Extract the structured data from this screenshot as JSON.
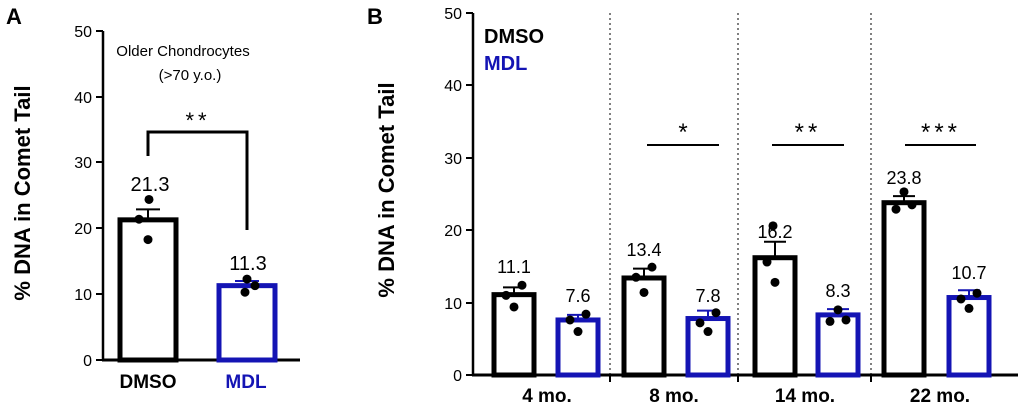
{
  "colors": {
    "dmso": "#000000",
    "mdl": "#1414b4",
    "axis": "#000000"
  },
  "chart_data": [
    {
      "panel_label": "A",
      "type": "bar",
      "title": "Older Chondrocytes",
      "subtitle": "(>70 y.o.)",
      "ylabel": "% DNA in Comet Tail",
      "ylim": [
        0,
        50
      ],
      "yticks": [
        "0",
        "10",
        "20",
        "30",
        "40",
        "50"
      ],
      "categories": [
        "DMSO",
        "MDL"
      ],
      "values": [
        21.3,
        11.3
      ],
      "value_labels": [
        "21.3",
        "11.3"
      ],
      "errors": [
        1.6,
        0.7
      ],
      "points": [
        [
          18.3,
          21.4,
          24.4
        ],
        [
          10.3,
          11.3,
          12.3
        ]
      ],
      "significance": [
        {
          "between": [
            "DMSO",
            "MDL"
          ],
          "label": "**"
        }
      ]
    },
    {
      "panel_label": "B",
      "type": "bar",
      "ylabel": "% DNA in Comet Tail",
      "ylim": [
        0,
        50
      ],
      "yticks": [
        "0",
        "10",
        "20",
        "30",
        "40",
        "50"
      ],
      "legend": {
        "position": "top-left",
        "entries": [
          "DMSO",
          "MDL"
        ]
      },
      "categories": [
        "4 mo.",
        "8 mo.",
        "14 mo.",
        "22 mo."
      ],
      "series": [
        {
          "name": "DMSO",
          "values": [
            11.1,
            13.4,
            16.2,
            23.8
          ],
          "value_labels": [
            "11.1",
            "13.4",
            "16.2",
            "23.8"
          ],
          "errors": [
            1.0,
            1.3,
            2.2,
            0.9
          ],
          "points": [
            [
              9.4,
              11.0,
              12.4
            ],
            [
              11.4,
              13.5,
              14.9
            ],
            [
              12.8,
              15.6,
              20.6
            ],
            [
              22.9,
              23.5,
              25.3
            ]
          ]
        },
        {
          "name": "MDL",
          "values": [
            7.6,
            7.8,
            8.3,
            10.7
          ],
          "value_labels": [
            "7.6",
            "7.8",
            "8.3",
            "10.7"
          ],
          "errors": [
            0.7,
            1.1,
            0.8,
            1.0
          ],
          "points": [
            [
              6.0,
              7.6,
              8.4
            ],
            [
              6.0,
              7.2,
              8.6
            ],
            [
              7.4,
              7.6,
              9.0
            ],
            [
              9.2,
              10.5,
              11.3
            ]
          ]
        }
      ],
      "significance": [
        {
          "group": "4 mo.",
          "label": ""
        },
        {
          "group": "8 mo.",
          "label": "*"
        },
        {
          "group": "14 mo.",
          "label": "**"
        },
        {
          "group": "22 mo.",
          "label": "***"
        }
      ]
    }
  ]
}
